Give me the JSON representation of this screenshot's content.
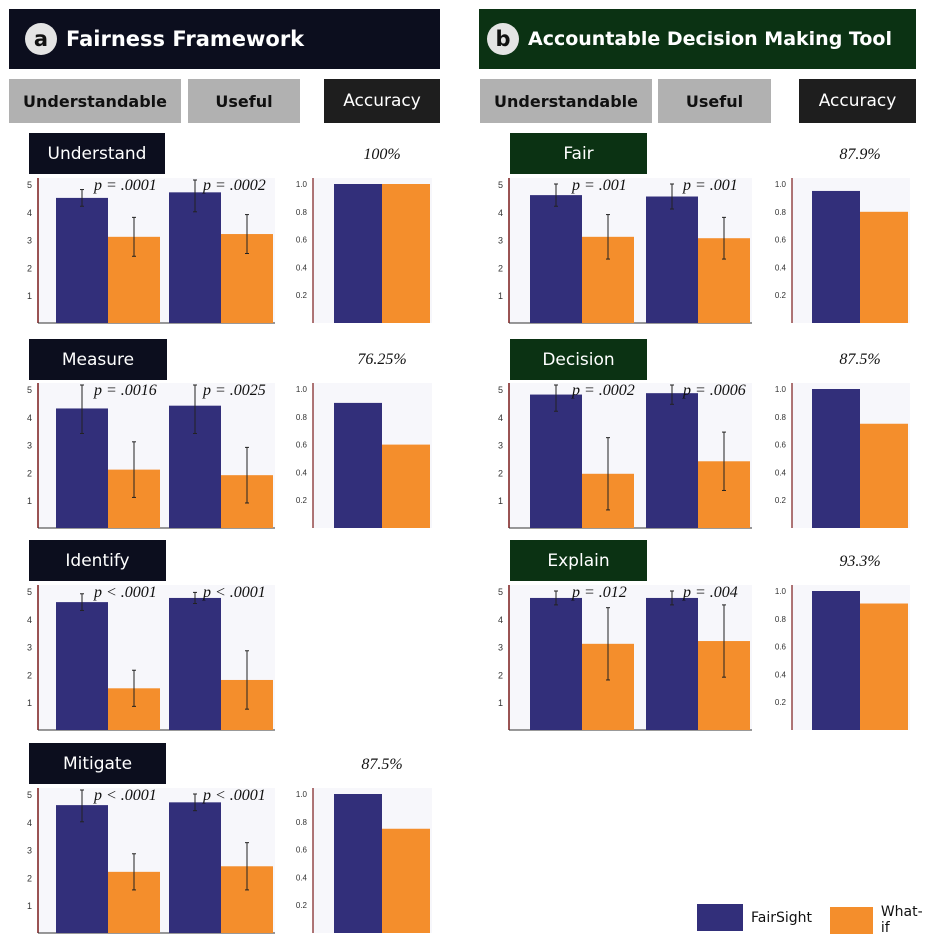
{
  "panels": [
    {
      "letter": "a",
      "title": "Fairness Framework",
      "header_color": "#0c0e1e",
      "label_color": "#0c0e1e",
      "columns": {
        "understandable": "Understandable",
        "useful": "Useful",
        "accuracy": "Accuracy"
      }
    },
    {
      "letter": "b",
      "title": "Accountable Decision Making Tool",
      "header_color": "#0b3213",
      "label_color": "#0b3213",
      "columns": {
        "understandable": "Understandable",
        "useful": "Useful",
        "accuracy": "Accuracy"
      }
    }
  ],
  "legend": [
    {
      "name": "FairSight",
      "color": "#322f7a"
    },
    {
      "name": "What-if",
      "color": "#f48e2c"
    }
  ],
  "chart_data": [
    {
      "type": "bar",
      "panel": "a",
      "row": "Understand",
      "categories": [
        "Understandable",
        "Useful"
      ],
      "series": [
        {
          "name": "FairSight",
          "values": [
            4.5,
            4.7
          ],
          "err": [
            0.3,
            0.7
          ]
        },
        {
          "name": "What-if",
          "values": [
            3.1,
            3.2
          ],
          "err": [
            0.7,
            0.7
          ]
        }
      ],
      "p_values": [
        "p = .0001",
        "p = .0002"
      ],
      "ylim": [
        0,
        5
      ],
      "yticks": [
        "1",
        "2",
        "3",
        "4",
        "5"
      ],
      "accuracy": {
        "label": "100%",
        "values": [
          1.0,
          1.0
        ],
        "yticks": [
          "0.2",
          "0.4",
          "0.6",
          "0.8",
          "1.0"
        ]
      }
    },
    {
      "type": "bar",
      "panel": "a",
      "row": "Measure",
      "categories": [
        "Understandable",
        "Useful"
      ],
      "series": [
        {
          "name": "FairSight",
          "values": [
            4.3,
            4.4
          ],
          "err": [
            0.9,
            1.0
          ]
        },
        {
          "name": "What-if",
          "values": [
            2.1,
            1.9
          ],
          "err": [
            1.0,
            1.0
          ]
        }
      ],
      "p_values": [
        "p = .0016",
        "p = .0025"
      ],
      "ylim": [
        0,
        5
      ],
      "yticks": [
        "1",
        "2",
        "3",
        "4",
        "5"
      ],
      "accuracy": {
        "label": "76.25%",
        "values": [
          0.9,
          0.6
        ],
        "yticks": [
          "0.2",
          "0.4",
          "0.6",
          "0.8",
          "1.0"
        ]
      }
    },
    {
      "type": "bar",
      "panel": "a",
      "row": "Identify",
      "categories": [
        "Understandable",
        "Useful"
      ],
      "series": [
        {
          "name": "FairSight",
          "values": [
            4.6,
            4.75
          ],
          "err": [
            0.3,
            0.2
          ]
        },
        {
          "name": "What-if",
          "values": [
            1.5,
            1.8
          ],
          "err": [
            0.65,
            1.05
          ]
        }
      ],
      "p_values": [
        "p < .0001",
        "p < .0001"
      ],
      "ylim": [
        0,
        5
      ],
      "yticks": [
        "1",
        "2",
        "3",
        "4",
        "5"
      ],
      "accuracy": null
    },
    {
      "type": "bar",
      "panel": "a",
      "row": "Mitigate",
      "categories": [
        "Understandable",
        "Useful"
      ],
      "series": [
        {
          "name": "FairSight",
          "values": [
            4.6,
            4.7
          ],
          "err": [
            0.6,
            0.3
          ]
        },
        {
          "name": "What-if",
          "values": [
            2.2,
            2.4
          ],
          "err": [
            0.65,
            0.85
          ]
        }
      ],
      "p_values": [
        "p < .0001",
        "p < .0001"
      ],
      "ylim": [
        0,
        5
      ],
      "yticks": [
        "1",
        "2",
        "3",
        "4",
        "5"
      ],
      "accuracy": {
        "label": "87.5%",
        "values": [
          1.0,
          0.75
        ],
        "yticks": [
          "0.2",
          "0.4",
          "0.6",
          "0.8",
          "1.0"
        ]
      }
    },
    {
      "type": "bar",
      "panel": "b",
      "row": "Fair",
      "categories": [
        "Understandable",
        "Useful"
      ],
      "series": [
        {
          "name": "FairSight",
          "values": [
            4.6,
            4.55
          ],
          "err": [
            0.4,
            0.45
          ]
        },
        {
          "name": "What-if",
          "values": [
            3.1,
            3.05
          ],
          "err": [
            0.8,
            0.75
          ]
        }
      ],
      "p_values": [
        "p = .001",
        "p = .001"
      ],
      "ylim": [
        0,
        5
      ],
      "yticks": [
        "1",
        "2",
        "3",
        "4",
        "5"
      ],
      "accuracy": {
        "label": "87.9%",
        "values": [
          0.95,
          0.8
        ],
        "yticks": [
          "0.2",
          "0.4",
          "0.6",
          "0.8",
          "1.0"
        ]
      }
    },
    {
      "type": "bar",
      "panel": "b",
      "row": "Decision",
      "categories": [
        "Understandable",
        "Useful"
      ],
      "series": [
        {
          "name": "FairSight",
          "values": [
            4.8,
            4.85
          ],
          "err": [
            0.6,
            0.4
          ]
        },
        {
          "name": "What-if",
          "values": [
            1.95,
            2.4
          ],
          "err": [
            1.3,
            1.05
          ]
        }
      ],
      "p_values": [
        "p = .0002",
        "p = .0006"
      ],
      "ylim": [
        0,
        5
      ],
      "yticks": [
        "1",
        "2",
        "3",
        "4",
        "5"
      ],
      "accuracy": {
        "label": "87.5%",
        "values": [
          1.0,
          0.75
        ],
        "yticks": [
          "0.2",
          "0.4",
          "0.6",
          "0.8",
          "1.0"
        ]
      }
    },
    {
      "type": "bar",
      "panel": "b",
      "row": "Explain",
      "categories": [
        "Understandable",
        "Useful"
      ],
      "series": [
        {
          "name": "FairSight",
          "values": [
            4.75,
            4.75
          ],
          "err": [
            0.25,
            0.25
          ]
        },
        {
          "name": "What-if",
          "values": [
            3.1,
            3.2
          ],
          "err": [
            1.3,
            1.3
          ]
        }
      ],
      "p_values": [
        "p = .012",
        "p = .004"
      ],
      "ylim": [
        0,
        5
      ],
      "yticks": [
        "1",
        "2",
        "3",
        "4",
        "5"
      ],
      "accuracy": {
        "label": "93.3%",
        "values": [
          1.0,
          0.91
        ],
        "yticks": [
          "0.2",
          "0.4",
          "0.6",
          "0.8",
          "1.0"
        ]
      }
    }
  ]
}
